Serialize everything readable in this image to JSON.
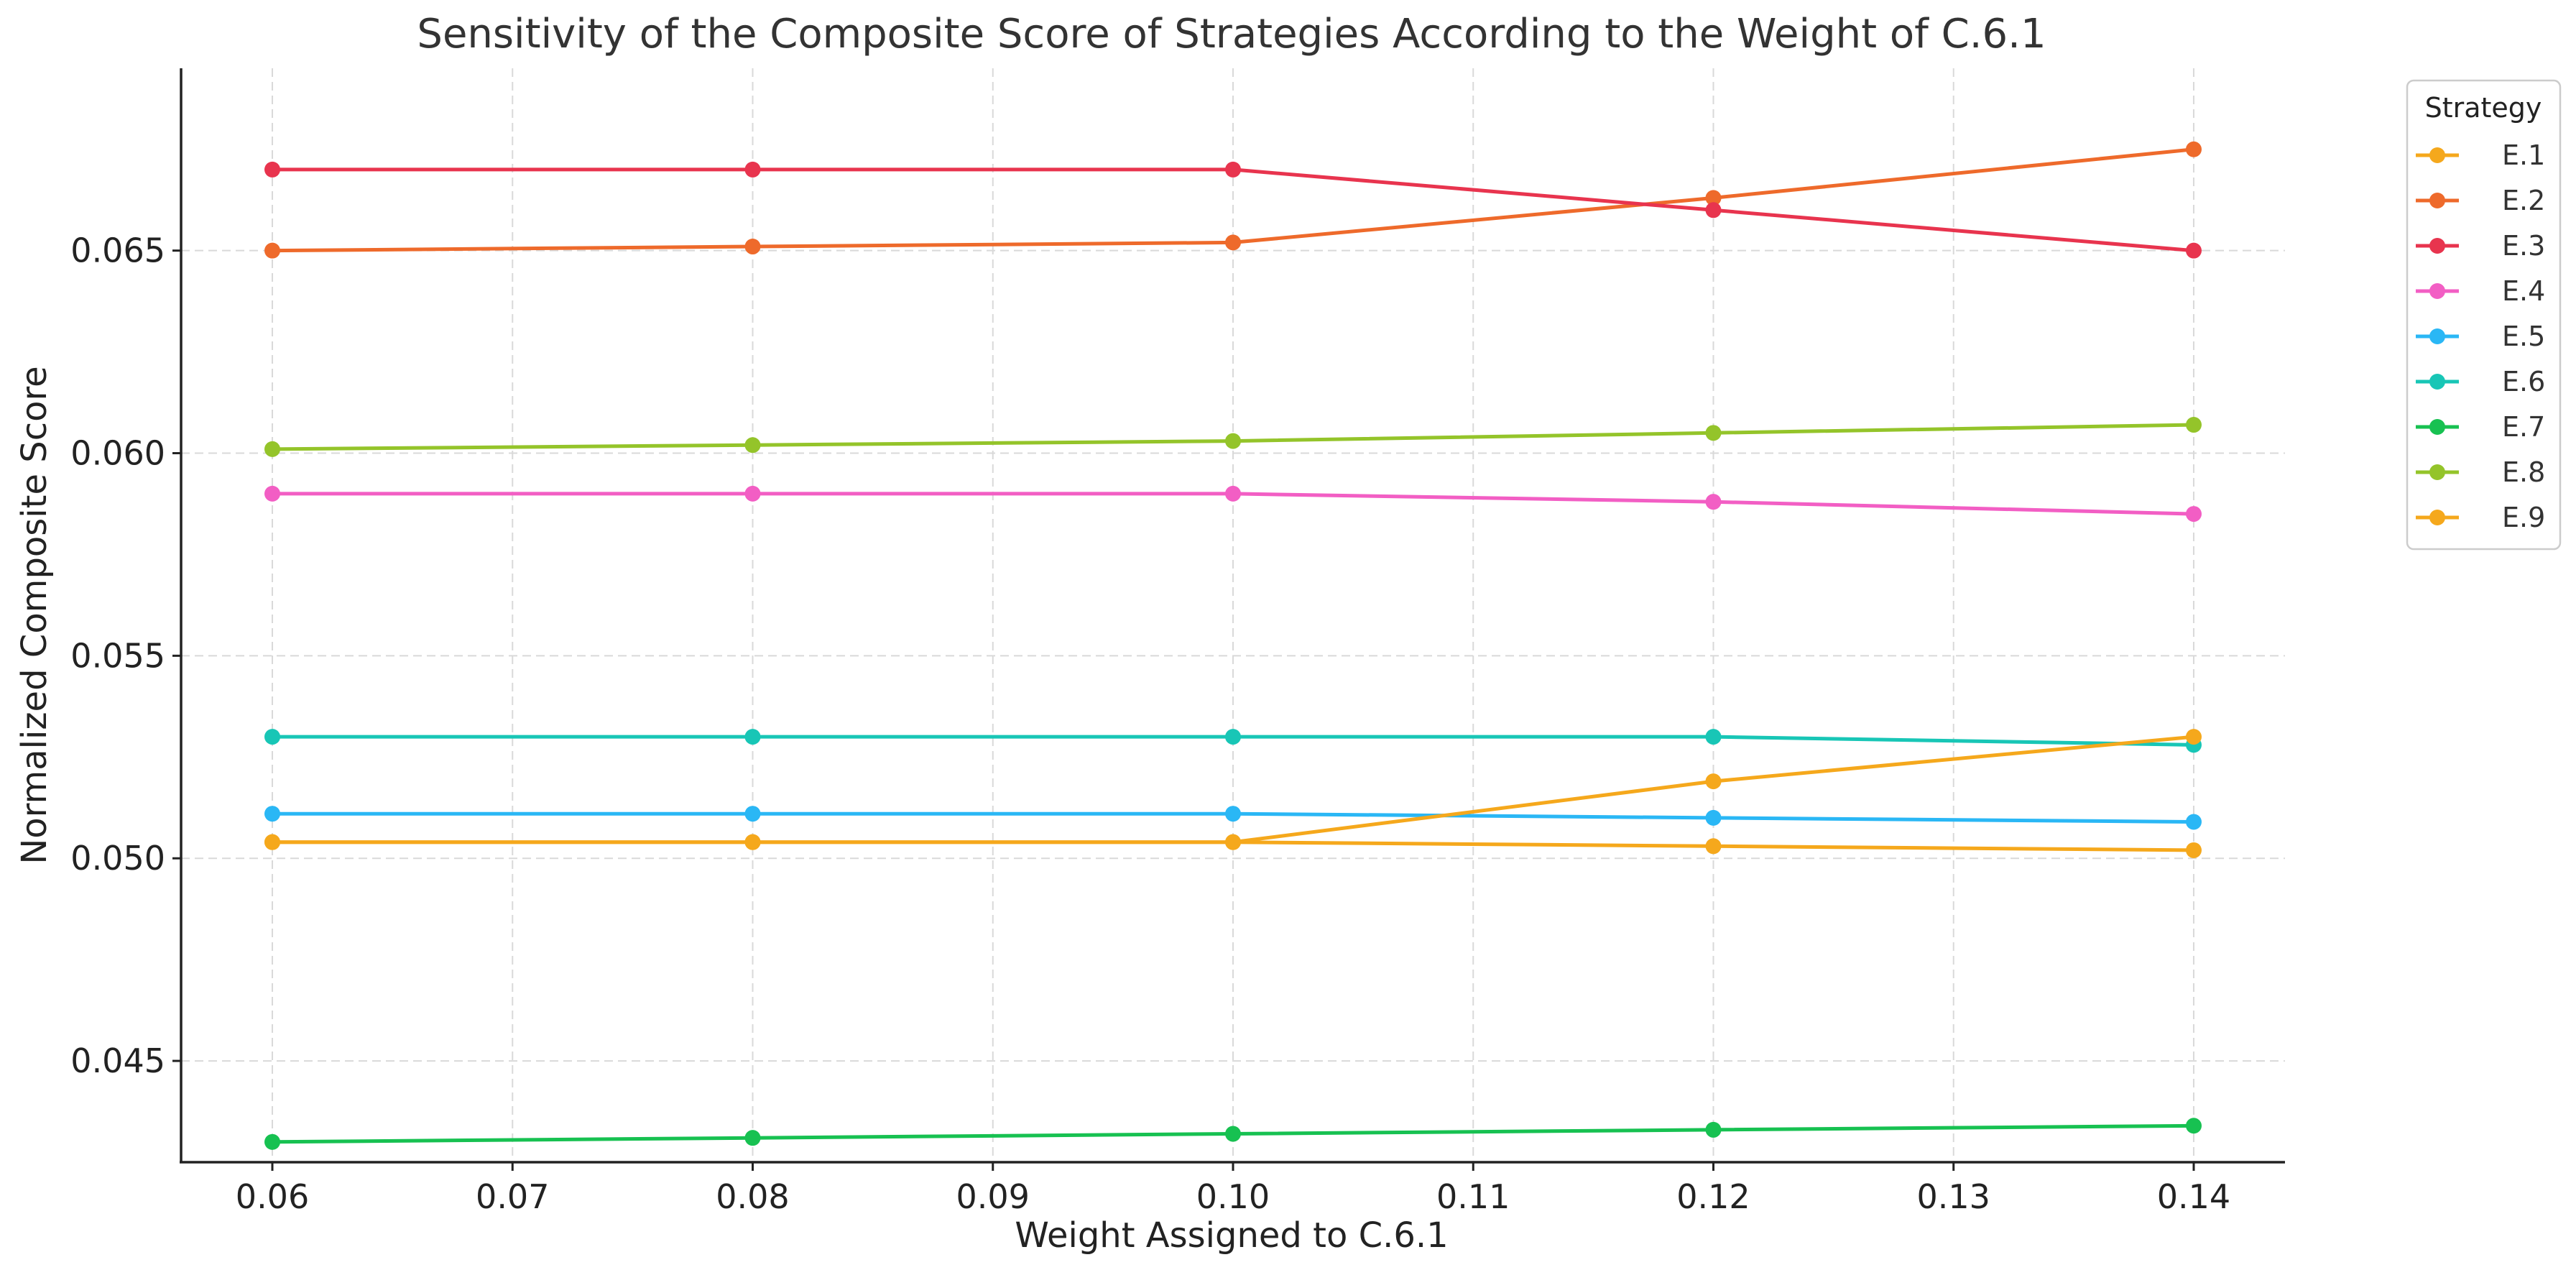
{
  "chart_data": {
    "type": "line",
    "title": "Sensitivity of the Composite Score of Strategies According to the Weight of C.6.1",
    "xlabel": "Weight Assigned to C.6.1",
    "ylabel": "Normalized Composite Score",
    "x": [
      0.06,
      0.08,
      0.1,
      0.12,
      0.14
    ],
    "xlim": [
      0.0562,
      0.1438
    ],
    "ylim": [
      0.0425,
      0.0695
    ],
    "x_ticks": [
      {
        "value": 0.06,
        "label": "0.06"
      },
      {
        "value": 0.07,
        "label": "0.07"
      },
      {
        "value": 0.08,
        "label": "0.08"
      },
      {
        "value": 0.09,
        "label": "0.09"
      },
      {
        "value": 0.1,
        "label": "0.10"
      },
      {
        "value": 0.11,
        "label": "0.11"
      },
      {
        "value": 0.12,
        "label": "0.12"
      },
      {
        "value": 0.13,
        "label": "0.13"
      },
      {
        "value": 0.14,
        "label": "0.14"
      }
    ],
    "y_ticks": [
      {
        "value": 0.045,
        "label": "0.045"
      },
      {
        "value": 0.05,
        "label": "0.050"
      },
      {
        "value": 0.055,
        "label": "0.055"
      },
      {
        "value": 0.06,
        "label": "0.060"
      },
      {
        "value": 0.065,
        "label": "0.065"
      }
    ],
    "grid": true,
    "legend": {
      "title": "Strategy",
      "position": "outside-top-right"
    },
    "series": [
      {
        "name": "E.1",
        "color": "#f5a81c",
        "values": [
          0.0504,
          0.0504,
          0.0504,
          0.0503,
          0.0502
        ]
      },
      {
        "name": "E.2",
        "color": "#ee6a2b",
        "values": [
          0.065,
          0.0651,
          0.0652,
          0.0663,
          0.0675
        ]
      },
      {
        "name": "E.3",
        "color": "#e8344e",
        "values": [
          0.067,
          0.067,
          0.067,
          0.066,
          0.065
        ]
      },
      {
        "name": "E.4",
        "color": "#f25ec4",
        "values": [
          0.059,
          0.059,
          0.059,
          0.0588,
          0.0585
        ]
      },
      {
        "name": "E.5",
        "color": "#2ab7f5",
        "values": [
          0.0511,
          0.0511,
          0.0511,
          0.051,
          0.0509
        ]
      },
      {
        "name": "E.6",
        "color": "#18c6b6",
        "values": [
          0.053,
          0.053,
          0.053,
          0.053,
          0.0528
        ]
      },
      {
        "name": "E.7",
        "color": "#17c151",
        "values": [
          0.043,
          0.0431,
          0.0432,
          0.0433,
          0.0434
        ]
      },
      {
        "name": "E.8",
        "color": "#94c42a",
        "values": [
          0.0601,
          0.0602,
          0.0603,
          0.0605,
          0.0607
        ]
      },
      {
        "name": "E.9",
        "color": "#f5a81c",
        "values": [
          0.0504,
          0.0504,
          0.0504,
          0.0519,
          0.053
        ]
      }
    ]
  }
}
